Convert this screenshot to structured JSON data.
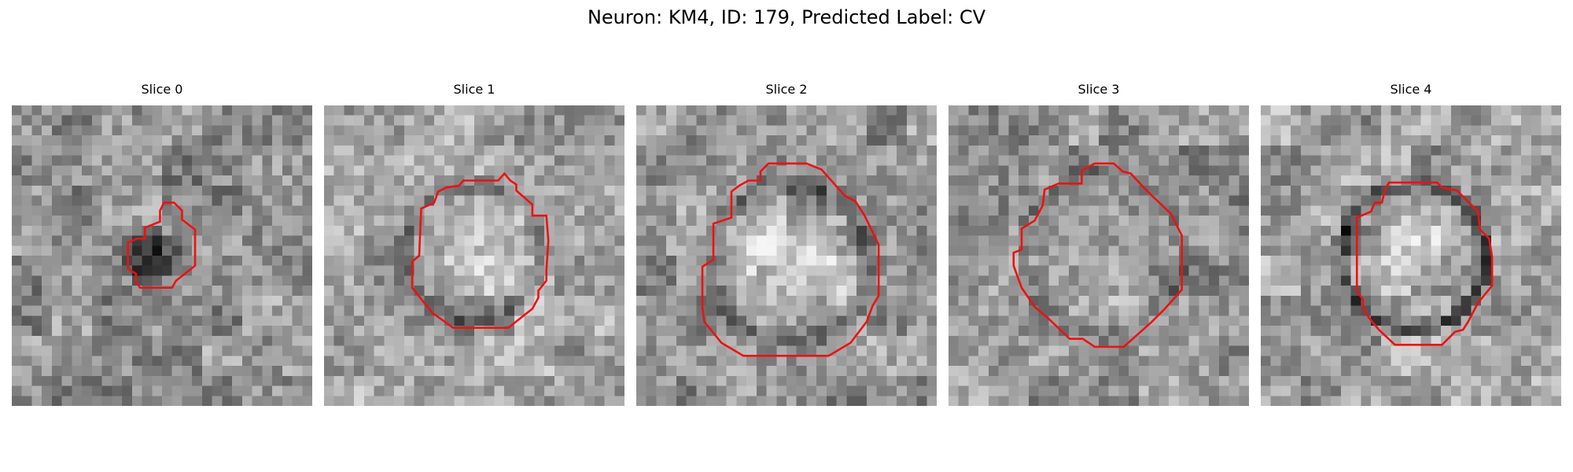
{
  "figure": {
    "title": "Neuron: KM4, ID: 179, Predicted Label: CV"
  },
  "colors": {
    "contour": "#ee1111",
    "background": "#ffffff",
    "colormap": "grayscale"
  },
  "image_grid": {
    "rows": 30,
    "cols": 30
  },
  "slices": [
    {
      "title": "Slice 0",
      "base_gray": 145,
      "blob": {
        "cx": 14.2,
        "cy": 15.2,
        "rx": 3.5,
        "ry": 2.6,
        "depth": 100
      },
      "halo": null,
      "outline": [
        [
          15.2,
          9.7
        ],
        [
          16.2,
          9.7
        ],
        [
          17.0,
          10.5
        ],
        [
          17.0,
          11.4
        ],
        [
          18.3,
          12.4
        ],
        [
          18.3,
          16.0
        ],
        [
          16.4,
          17.5
        ],
        [
          16.0,
          18.2
        ],
        [
          12.8,
          18.2
        ],
        [
          12.4,
          17.6
        ],
        [
          12.4,
          16.8
        ],
        [
          11.6,
          16.3
        ],
        [
          11.6,
          13.7
        ],
        [
          12.5,
          13.3
        ],
        [
          13.3,
          13.3
        ],
        [
          13.3,
          12.2
        ],
        [
          14.8,
          11.6
        ],
        [
          14.8,
          10.5
        ]
      ]
    },
    {
      "title": "Slice 1",
      "base_gray": 165,
      "blob": {
        "cx": 14.9,
        "cy": 14.4,
        "rx": 5.5,
        "ry": 5.0,
        "depth": -25
      },
      "halo": {
        "cx": 14.9,
        "cy": 14.6,
        "r_inner": 5.6,
        "r_outer": 8.2,
        "depth": 55
      },
      "outline": [
        [
          18.0,
          6.8
        ],
        [
          18.6,
          7.5
        ],
        [
          19.2,
          7.9
        ],
        [
          19.2,
          8.5
        ],
        [
          20.8,
          9.9
        ],
        [
          20.8,
          11.0
        ],
        [
          22.2,
          11.0
        ],
        [
          22.4,
          13.5
        ],
        [
          22.2,
          16.5
        ],
        [
          22.2,
          17.5
        ],
        [
          21.4,
          18.5
        ],
        [
          21.4,
          19.2
        ],
        [
          20.8,
          20.3
        ],
        [
          18.4,
          22.2
        ],
        [
          12.9,
          22.2
        ],
        [
          10.8,
          20.7
        ],
        [
          8.8,
          18.2
        ],
        [
          8.8,
          15.6
        ],
        [
          9.5,
          15.0
        ],
        [
          9.7,
          10.3
        ],
        [
          11.0,
          9.7
        ],
        [
          11.4,
          8.6
        ],
        [
          12.2,
          8.2
        ],
        [
          13.5,
          8.0
        ],
        [
          13.9,
          7.5
        ],
        [
          17.4,
          7.5
        ]
      ]
    },
    {
      "title": "Slice 2",
      "base_gray": 150,
      "blob": {
        "cx": 15.5,
        "cy": 16.0,
        "rx": 6.5,
        "ry": 6.2,
        "depth": -70
      },
      "halo": {
        "cx": 15.5,
        "cy": 15.7,
        "r_inner": 6.6,
        "r_outer": 9.2,
        "depth": 50
      },
      "outline": [
        [
          13.2,
          5.8
        ],
        [
          17.0,
          5.8
        ],
        [
          18.5,
          6.4
        ],
        [
          20.8,
          9.0
        ],
        [
          21.9,
          9.6
        ],
        [
          22.8,
          11.0
        ],
        [
          24.2,
          13.9
        ],
        [
          24.2,
          19.0
        ],
        [
          23.6,
          20.0
        ],
        [
          23.0,
          21.6
        ],
        [
          21.4,
          23.7
        ],
        [
          19.2,
          25.0
        ],
        [
          10.7,
          25.0
        ],
        [
          8.5,
          23.7
        ],
        [
          6.8,
          21.6
        ],
        [
          6.6,
          20.2
        ],
        [
          6.6,
          16.1
        ],
        [
          7.7,
          15.4
        ],
        [
          7.7,
          11.8
        ],
        [
          9.5,
          11.2
        ],
        [
          9.5,
          8.6
        ],
        [
          10.3,
          8.0
        ],
        [
          11.2,
          7.5
        ],
        [
          12.4,
          7.5
        ],
        [
          12.4,
          6.6
        ]
      ]
    },
    {
      "title": "Slice 3",
      "base_gray": 145,
      "blob": {
        "cx": 15.2,
        "cy": 14.6,
        "rx": 6.0,
        "ry": 6.8,
        "depth": -25
      },
      "halo": {
        "cx": 15.4,
        "cy": 14.6,
        "r_inner": 7.0,
        "r_outer": 8.8,
        "depth": 35
      },
      "outline": [
        [
          14.6,
          5.8
        ],
        [
          16.5,
          5.8
        ],
        [
          17.4,
          6.6
        ],
        [
          18.2,
          6.8
        ],
        [
          19.5,
          8.2
        ],
        [
          20.3,
          9.0
        ],
        [
          22.2,
          10.8
        ],
        [
          23.3,
          13.0
        ],
        [
          23.3,
          18.4
        ],
        [
          21.6,
          20.3
        ],
        [
          20.3,
          21.6
        ],
        [
          17.5,
          24.1
        ],
        [
          14.6,
          24.1
        ],
        [
          13.4,
          23.3
        ],
        [
          12.1,
          23.3
        ],
        [
          10.0,
          21.3
        ],
        [
          8.6,
          20.1
        ],
        [
          7.3,
          18.2
        ],
        [
          6.5,
          16.0
        ],
        [
          6.5,
          14.7
        ],
        [
          7.3,
          14.4
        ],
        [
          7.3,
          12.3
        ],
        [
          8.6,
          11.5
        ],
        [
          9.4,
          10.0
        ],
        [
          9.6,
          8.4
        ],
        [
          11.0,
          7.8
        ],
        [
          13.3,
          7.8
        ],
        [
          13.3,
          6.5
        ]
      ]
    },
    {
      "title": "Slice 4",
      "base_gray": 160,
      "blob": {
        "cx": 15.3,
        "cy": 15.2,
        "rx": 4.8,
        "ry": 5.0,
        "depth": -35
      },
      "halo": {
        "cx": 15.3,
        "cy": 15.1,
        "r_inner": 6.2,
        "r_outer": 8.2,
        "depth": 105
      },
      "outline": [
        [
          12.8,
          7.7
        ],
        [
          17.6,
          7.7
        ],
        [
          18.1,
          8.2
        ],
        [
          19.6,
          8.5
        ],
        [
          21.7,
          10.6
        ],
        [
          21.9,
          12.4
        ],
        [
          22.8,
          13.3
        ],
        [
          23.1,
          15.1
        ],
        [
          23.1,
          18.0
        ],
        [
          21.7,
          19.7
        ],
        [
          20.7,
          21.6
        ],
        [
          20.2,
          22.4
        ],
        [
          19.4,
          22.6
        ],
        [
          18.1,
          23.9
        ],
        [
          13.4,
          23.9
        ],
        [
          11.8,
          22.4
        ],
        [
          10.8,
          21.2
        ],
        [
          10.2,
          20.2
        ],
        [
          10.2,
          19.4
        ],
        [
          9.6,
          18.5
        ],
        [
          9.6,
          11.2
        ],
        [
          11.0,
          10.6
        ],
        [
          11.4,
          9.7
        ],
        [
          12.1,
          9.7
        ],
        [
          12.4,
          8.4
        ]
      ]
    }
  ]
}
